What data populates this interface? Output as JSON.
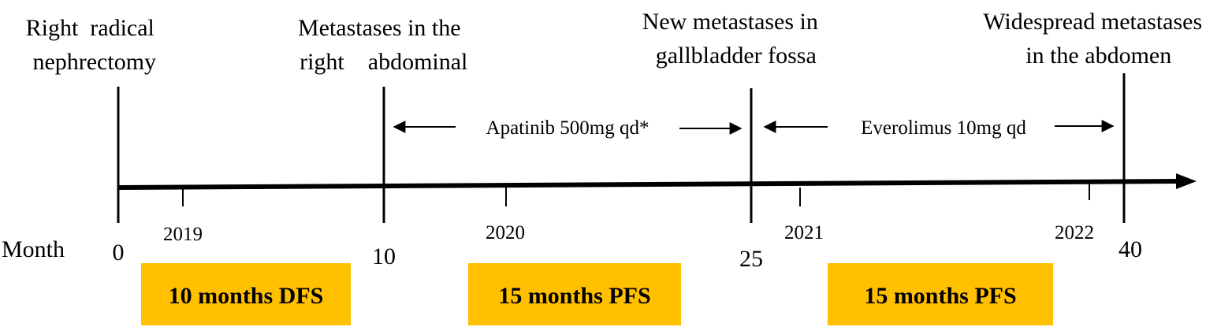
{
  "axis_label": "Month",
  "colors": {
    "line": "#000000",
    "box": "#FFC000"
  },
  "events": [
    {
      "month": "0",
      "label_lines": [
        "Right  radical",
        "nephrectomy"
      ]
    },
    {
      "month": "10",
      "label_lines": [
        "Metastases in the",
        "right    abdominal"
      ]
    },
    {
      "month": "25",
      "label_lines": [
        "New metastases in",
        "gallbladder fossa"
      ]
    },
    {
      "month": "40",
      "label_lines": [
        "Widespread metastases",
        "in the abdomen"
      ]
    }
  ],
  "therapies": [
    {
      "label": "Apatinib 500mg qd*",
      "from": "10",
      "to": "25"
    },
    {
      "label": "Everolimus 10mg qd",
      "from": "25",
      "to": "40"
    }
  ],
  "years": [
    "2019",
    "2020",
    "2021",
    "2022"
  ],
  "intervals": [
    {
      "label": "10 months DFS"
    },
    {
      "label": "15 months PFS"
    },
    {
      "label": "15 months PFS"
    }
  ]
}
